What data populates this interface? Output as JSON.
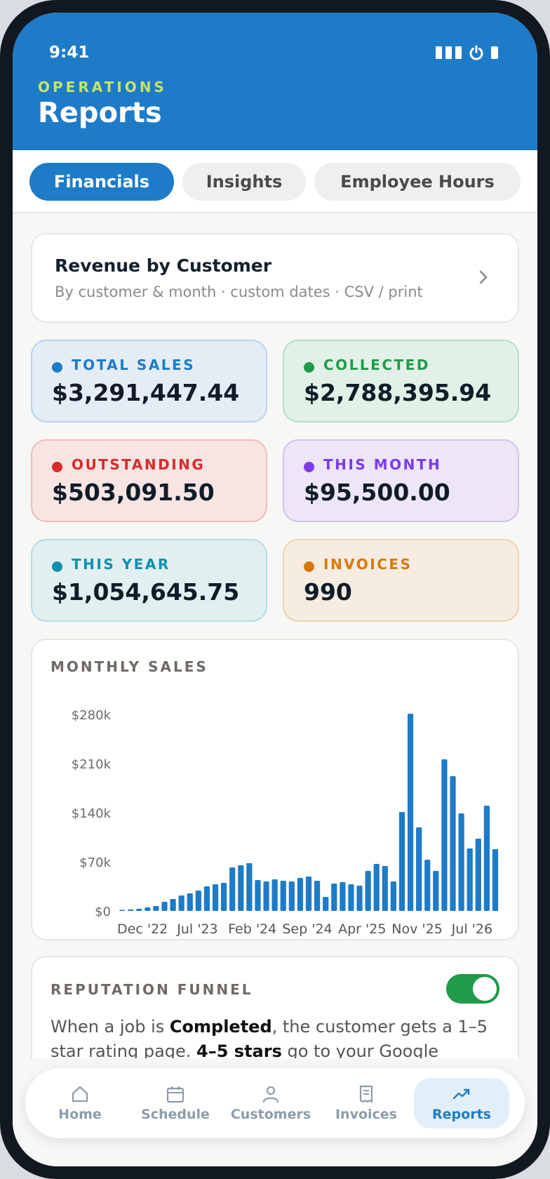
{
  "status_bar": {
    "time": "9:41"
  },
  "header": {
    "eyebrow": "OPERATIONS",
    "title": "Reports"
  },
  "tabs": [
    {
      "label": "Financials",
      "active": true
    },
    {
      "label": "Insights",
      "active": false
    },
    {
      "label": "Employee Hours",
      "active": false
    }
  ],
  "revenue_card": {
    "title": "Revenue by Customer",
    "subtitle": "By customer & month · custom dates · CSV / print"
  },
  "stats": [
    {
      "label": "TOTAL SALES",
      "value": "$3,291,447.44",
      "color": "#1e7bc8"
    },
    {
      "label": "COLLECTED",
      "value": "$2,788,395.94",
      "color": "#1f9b4a"
    },
    {
      "label": "OUTSTANDING",
      "value": "$503,091.50",
      "color": "#d92b2b"
    },
    {
      "label": "THIS MONTH",
      "value": "$95,500.00",
      "color": "#7c3aed"
    },
    {
      "label": "THIS YEAR",
      "value": "$1,054,645.75",
      "color": "#0e8fb0"
    },
    {
      "label": "INVOICES",
      "value": "990",
      "color": "#d97706"
    }
  ],
  "chart_data": {
    "type": "bar",
    "title": "MONTHLY SALES",
    "y_ticks": [
      "$0",
      "$70k",
      "$140k",
      "$210k",
      "$280k"
    ],
    "ylim": [
      0,
      280000
    ],
    "x_tick_labels": [
      "Dec '22",
      "Jul '23",
      "Feb '24",
      "Sep '24",
      "Apr '25",
      "Nov '25",
      "Jul '26"
    ],
    "color": "#1e7bc8",
    "grid": false,
    "values": [
      1500,
      2000,
      3000,
      5000,
      7000,
      13000,
      17000,
      22000,
      25000,
      29000,
      35000,
      38000,
      40000,
      62000,
      65000,
      68000,
      44000,
      42000,
      45000,
      43000,
      42000,
      47000,
      49000,
      43000,
      20000,
      39000,
      41000,
      38000,
      36000,
      57000,
      67000,
      64000,
      42000,
      141000,
      281000,
      119000,
      73000,
      57000,
      216000,
      192000,
      139000,
      89000,
      103000,
      150000,
      88000
    ]
  },
  "reputation": {
    "label": "REPUTATION FUNNEL",
    "toggle_on": true,
    "text_1": "When a job is ",
    "bold_1": "Completed",
    "text_2": ", the customer gets a 1–5 star rating page. ",
    "bold_2": "4–5 stars",
    "text_3": " go to your Google"
  },
  "nav": [
    {
      "label": "Home",
      "icon": "home-icon",
      "active": false
    },
    {
      "label": "Schedule",
      "icon": "calendar-icon",
      "active": false
    },
    {
      "label": "Customers",
      "icon": "person-icon",
      "active": false
    },
    {
      "label": "Invoices",
      "icon": "receipt-icon",
      "active": false
    },
    {
      "label": "Reports",
      "icon": "trending-up-icon",
      "active": true
    }
  ]
}
